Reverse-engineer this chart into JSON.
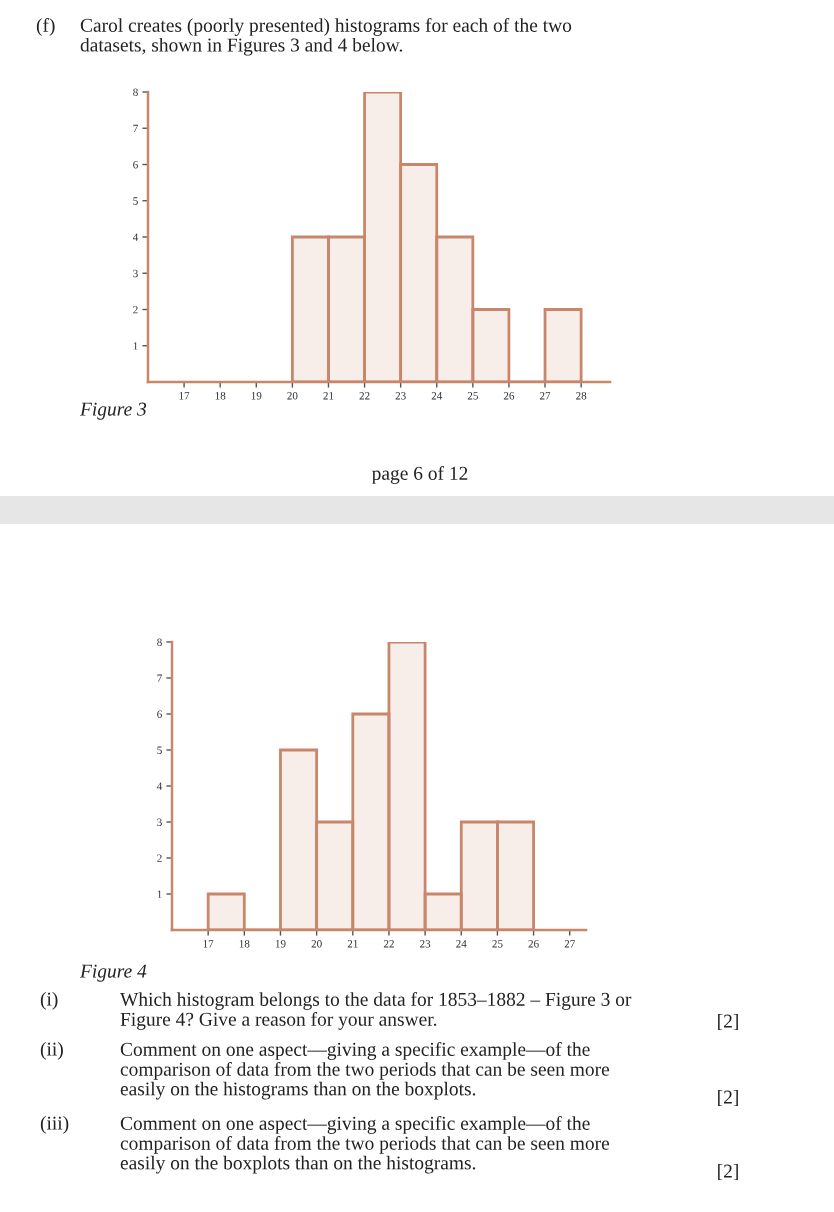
{
  "chart_data": [
    {
      "type": "histogram",
      "bins": [
        20,
        21,
        22,
        23,
        24,
        25,
        26,
        27,
        28
      ],
      "values": [
        4,
        4,
        8,
        6,
        4,
        2,
        0,
        2
      ],
      "color": "#c8866a",
      "xlim": [
        16,
        28.8
      ],
      "ylim": [
        0,
        8
      ],
      "xticks": [
        17,
        18,
        19,
        20,
        21,
        22,
        23,
        24,
        25,
        26,
        27,
        28
      ],
      "yticks": [
        1,
        2,
        3,
        4,
        5,
        6,
        7,
        8
      ],
      "grid": false,
      "annotations": [
        "(f)",
        "Carol creates (poorly presented) histograms for each of the two\ndatasets, shown in Figures 3 and 4 below.",
        "Figure 3",
        "page 6 of 12"
      ]
    },
    {
      "type": "histogram",
      "bins": [
        17,
        18,
        19,
        20,
        21,
        22,
        23,
        24,
        25,
        26
      ],
      "values": [
        1,
        0,
        5,
        3,
        6,
        8,
        1,
        3,
        3
      ],
      "color": "#c8866a",
      "xlim": [
        16,
        27.45
      ],
      "ylim": [
        0,
        8
      ],
      "xticks": [
        17,
        18,
        19,
        20,
        21,
        22,
        23,
        24,
        25,
        26,
        27
      ],
      "yticks": [
        1,
        2,
        3,
        4,
        5,
        6,
        7,
        8
      ],
      "grid": false,
      "annotations": [
        "Figure 4",
        "(i)",
        "Which histogram belongs to the data for 1853–1882 – Figure 3 or\nFigure 4? Give a reason for your answer.",
        "[2]",
        "(ii)",
        "Comment on one aspect—giving a specific example—of the\ncomparison of data from the two periods that can be seen more\neasily on the histograms than on the boxplots.",
        "[2]",
        "(iii)",
        "Comment on one aspect—giving a specific example—of the\ncomparison of data from the two periods that can be seen more\neasily on the boxplots than on the histograms.",
        "[2]"
      ]
    }
  ]
}
